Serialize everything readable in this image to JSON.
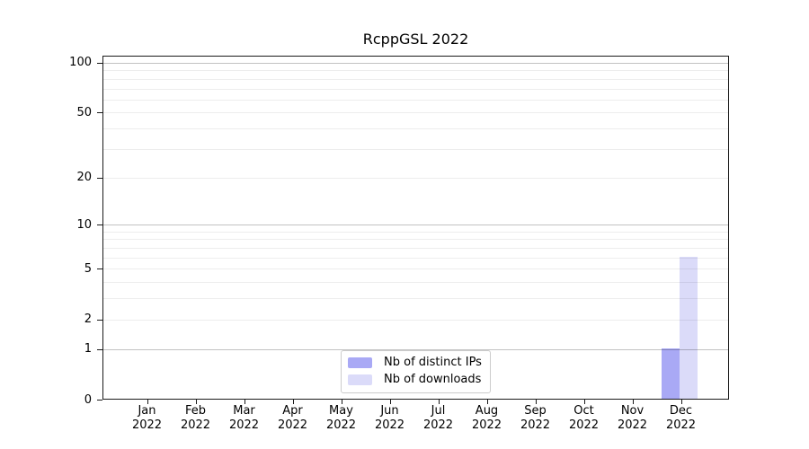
{
  "chart_data": {
    "type": "bar",
    "title": "RcppGSL 2022",
    "categories": [
      "Jan 2022",
      "Feb 2022",
      "Mar 2022",
      "Apr 2022",
      "May 2022",
      "Jun 2022",
      "Jul 2022",
      "Aug 2022",
      "Sep 2022",
      "Oct 2022",
      "Nov 2022",
      "Dec 2022"
    ],
    "series": [
      {
        "name": "Nb of distinct IPs",
        "color": "#a9a9f5",
        "values": [
          0,
          0,
          0,
          0,
          0,
          0,
          0,
          0,
          0,
          0,
          0,
          1
        ]
      },
      {
        "name": "Nb of downloads",
        "color": "#dbdbf9",
        "values": [
          0,
          0,
          0,
          0,
          0,
          0,
          0,
          0,
          0,
          0,
          0,
          6
        ]
      }
    ],
    "xlabel": "",
    "ylabel": "",
    "yscale": "log1p",
    "yticks": [
      0,
      1,
      2,
      5,
      10,
      20,
      50,
      100
    ],
    "ylim": [
      0,
      110
    ],
    "grid": "both",
    "legend_position": "lower-center-inside"
  }
}
